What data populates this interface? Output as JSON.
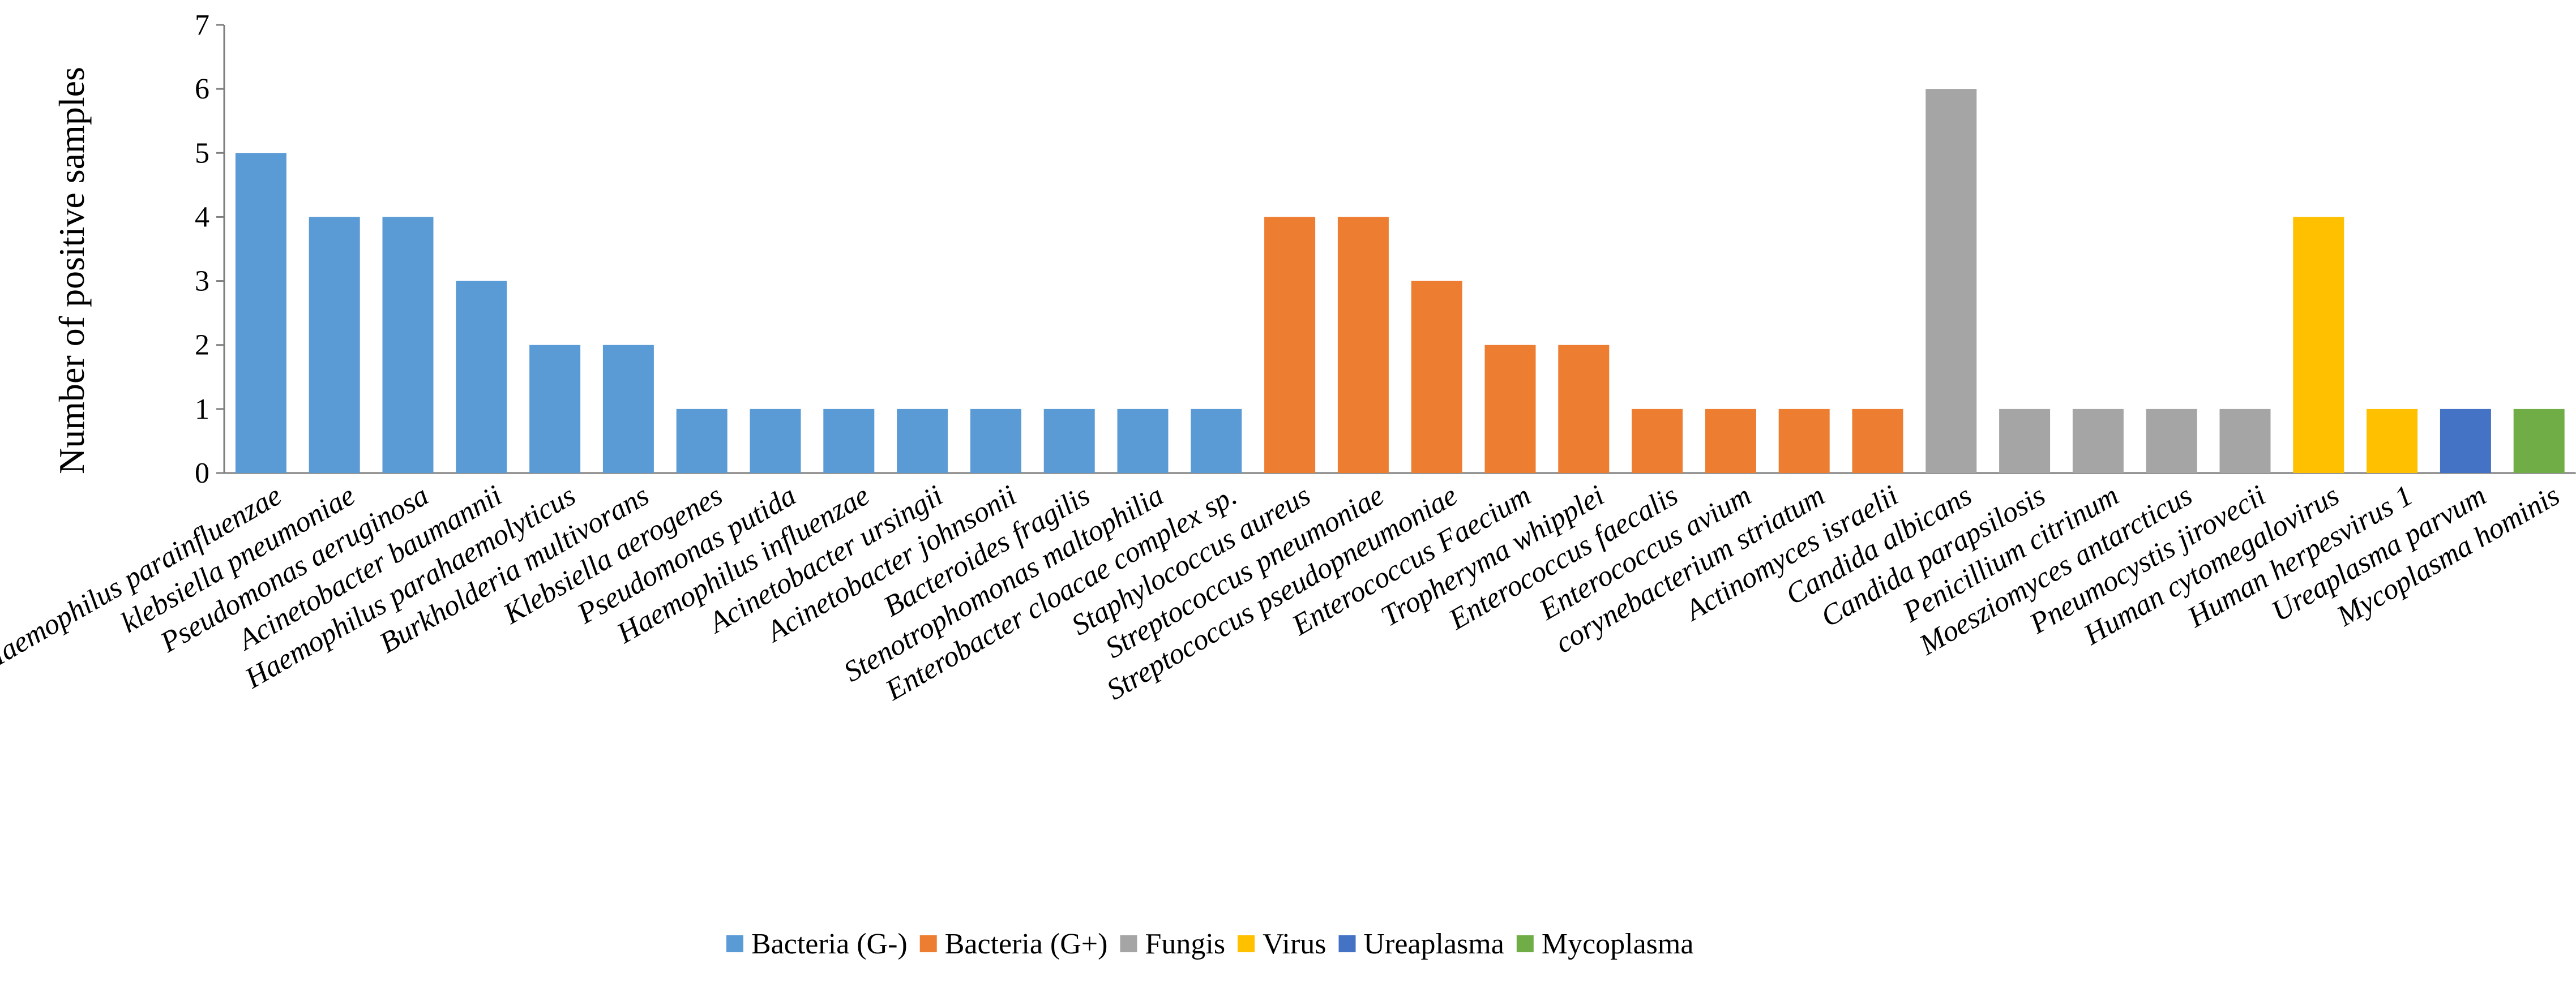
{
  "chart_data": {
    "type": "bar",
    "title": "",
    "xlabel": "",
    "ylabel": "Number of positive samples",
    "ylim": [
      0,
      7
    ],
    "yticks": [
      0,
      1,
      2,
      3,
      4,
      5,
      6,
      7
    ],
    "grid": false,
    "legend_position": "bottom-center",
    "series": [
      {
        "name": "Bacteria (G-)",
        "color": "#5B9BD5"
      },
      {
        "name": "Bacteria (G+)",
        "color": "#ED7D31"
      },
      {
        "name": "Fungis",
        "color": "#A5A5A5"
      },
      {
        "name": "Virus",
        "color": "#FFC000"
      },
      {
        "name": "Ureaplasma",
        "color": "#4472C4"
      },
      {
        "name": "Mycoplasma",
        "color": "#70AD47"
      }
    ],
    "categories": [
      "Haemophilus parainfluenzae",
      "klebsiella pneumoniae",
      "Pseudomonas aeruginosa",
      "Acinetobacter baumannii",
      "Haemophilus parahaemolyticus",
      "Burkholderia multivorans",
      "Klebsiella aerogenes",
      "Pseudomonas putida",
      "Haemophilus influenzae",
      "Acinetobacter ursingii",
      "Acinetobacter johnsonii",
      "Bacteroides fragilis",
      "Stenotrophomonas maltophilia",
      "Enterobacter cloacae complex sp.",
      "Staphylococcus aureus",
      "Streptococcus pneumoniae",
      "Streptococcus pseudopneumoniae",
      "Enterococcus Faecium",
      "Tropheryma whipplei",
      "Enterococcus faecalis",
      "Enterococcus avium",
      "corynebacterium striatum",
      "Actinomyces israelii",
      "Candida albicans",
      "Candida parapsilosis",
      "Penicillium citrinum",
      "Moesziomyces antarcticus",
      "Pneumocystis jirovecii",
      "Human cytomegalovirus",
      "Human herpesvirus 1",
      "Ureaplasma parvum",
      "Mycoplasma hominis"
    ],
    "values": [
      5,
      4,
      4,
      3,
      2,
      2,
      1,
      1,
      1,
      1,
      1,
      1,
      1,
      1,
      4,
      4,
      3,
      2,
      2,
      1,
      1,
      1,
      1,
      6,
      1,
      1,
      1,
      1,
      4,
      1,
      1,
      1
    ],
    "series_index": [
      0,
      0,
      0,
      0,
      0,
      0,
      0,
      0,
      0,
      0,
      0,
      0,
      0,
      0,
      1,
      1,
      1,
      1,
      1,
      1,
      1,
      1,
      1,
      2,
      2,
      2,
      2,
      2,
      3,
      3,
      4,
      5
    ]
  }
}
